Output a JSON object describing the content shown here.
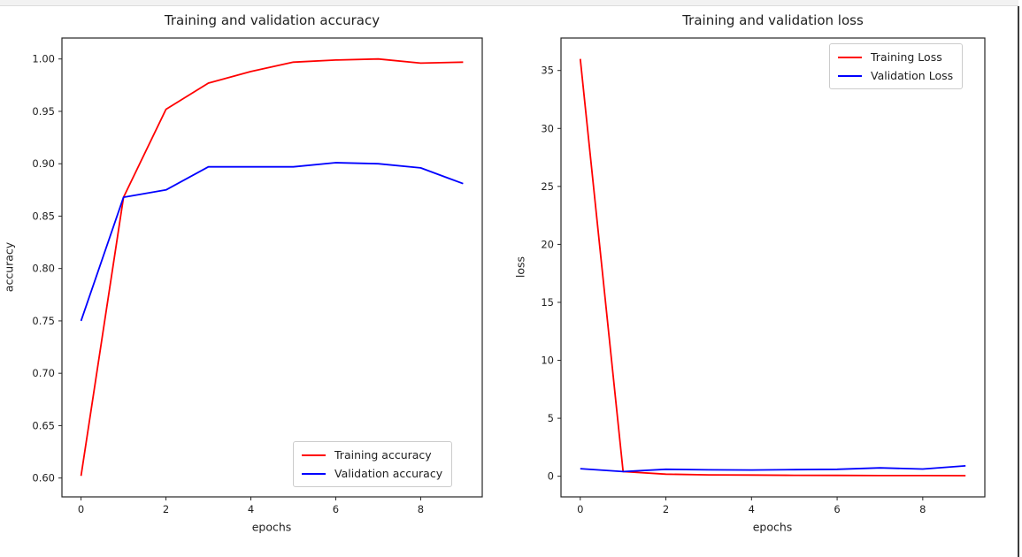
{
  "window": {
    "top_strip_color": "#f2f2f2",
    "top_strip_border_color": "#dcdcdc",
    "right_border_color": "#3c3c3c",
    "background_color": "#ffffff"
  },
  "chart_data": [
    {
      "type": "line",
      "title": "Training and validation accuracy",
      "xlabel": "epochs",
      "ylabel": "accuracy",
      "x": [
        0,
        1,
        2,
        3,
        4,
        5,
        6,
        7,
        8,
        9
      ],
      "series": [
        {
          "name": "Training accuracy",
          "color": "#ff0000",
          "values": [
            0.602,
            0.868,
            0.952,
            0.977,
            0.988,
            0.997,
            0.999,
            1.0,
            0.996,
            0.997
          ]
        },
        {
          "name": "Validation accuracy",
          "color": "#0000ff",
          "values": [
            0.75,
            0.868,
            0.875,
            0.897,
            0.897,
            0.897,
            0.901,
            0.9,
            0.896,
            0.881
          ]
        }
      ],
      "xlim": [
        -0.45,
        9.45
      ],
      "ylim": [
        0.582,
        1.02
      ],
      "xticks": [
        0,
        2,
        4,
        6,
        8
      ],
      "xtick_labels": [
        "0",
        "2",
        "4",
        "6",
        "8"
      ],
      "yticks": [
        0.6,
        0.65,
        0.7,
        0.75,
        0.8,
        0.85,
        0.9,
        0.95,
        1.0
      ],
      "ytick_labels": [
        "0.60",
        "0.65",
        "0.70",
        "0.75",
        "0.80",
        "0.85",
        "0.90",
        "0.95",
        "1.00"
      ],
      "legend_loc": "lower right",
      "grid": false
    },
    {
      "type": "line",
      "title": "Training and validation loss",
      "xlabel": "epochs",
      "ylabel": "loss",
      "x": [
        0,
        1,
        2,
        3,
        4,
        5,
        6,
        7,
        8,
        9
      ],
      "series": [
        {
          "name": "Training Loss",
          "color": "#ff0000",
          "values": [
            36.0,
            0.4,
            0.18,
            0.12,
            0.1,
            0.08,
            0.07,
            0.06,
            0.06,
            0.05
          ]
        },
        {
          "name": "Validation Loss",
          "color": "#0000ff",
          "values": [
            0.65,
            0.4,
            0.6,
            0.55,
            0.54,
            0.57,
            0.6,
            0.72,
            0.62,
            0.9
          ]
        }
      ],
      "xlim": [
        -0.45,
        9.45
      ],
      "ylim": [
        -1.78,
        37.8
      ],
      "xticks": [
        0,
        2,
        4,
        6,
        8
      ],
      "xtick_labels": [
        "0",
        "2",
        "4",
        "6",
        "8"
      ],
      "yticks": [
        0,
        5,
        10,
        15,
        20,
        25,
        30,
        35
      ],
      "ytick_labels": [
        "0",
        "5",
        "10",
        "15",
        "20",
        "25",
        "30",
        "35"
      ],
      "legend_loc": "upper right",
      "grid": false
    }
  ]
}
